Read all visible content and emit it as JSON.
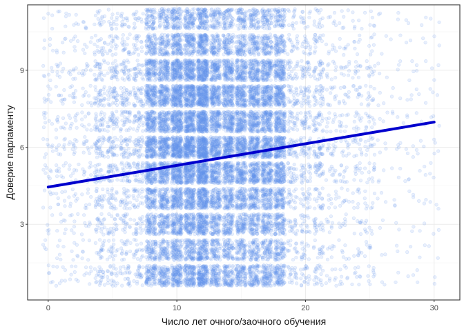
{
  "chart_data": {
    "type": "scatter",
    "title": "",
    "xlabel": "Число лет очного/заочного обучения",
    "ylabel": "Доверие парламенту",
    "xlim": [
      -1.6,
      32.0
    ],
    "ylim": [
      0.05,
      11.55
    ],
    "x_ticks": [
      0,
      10,
      20,
      30
    ],
    "x_tick_labels": [
      "0",
      "10",
      "20",
      "30"
    ],
    "y_ticks": [
      3,
      6,
      9
    ],
    "y_tick_labels": [
      "3",
      "6",
      "9"
    ],
    "x_minor_ticks": [
      5,
      15,
      25
    ],
    "y_minor_ticks": [
      1.5,
      4.5,
      7.5,
      10.5
    ],
    "grid": true,
    "legend": "none",
    "points": {
      "description_levels_y": [
        1,
        2,
        3,
        4,
        5,
        6,
        7,
        8,
        9,
        10,
        11
      ],
      "x_range": [
        0,
        30
      ],
      "jitter": {
        "x": 0.4,
        "y": 0.4
      },
      "color": "#6495ed",
      "alpha": 0.15,
      "dense_x_range": [
        8,
        18
      ]
    },
    "regression_line": {
      "x": [
        0,
        30
      ],
      "y": [
        4.45,
        6.98
      ],
      "color": "#0000cd"
    },
    "colors": {
      "panel_border": "#333333",
      "grid_major": "#ebebeb",
      "grid_minor": "#f3f3f3",
      "background": "#ffffff"
    }
  }
}
